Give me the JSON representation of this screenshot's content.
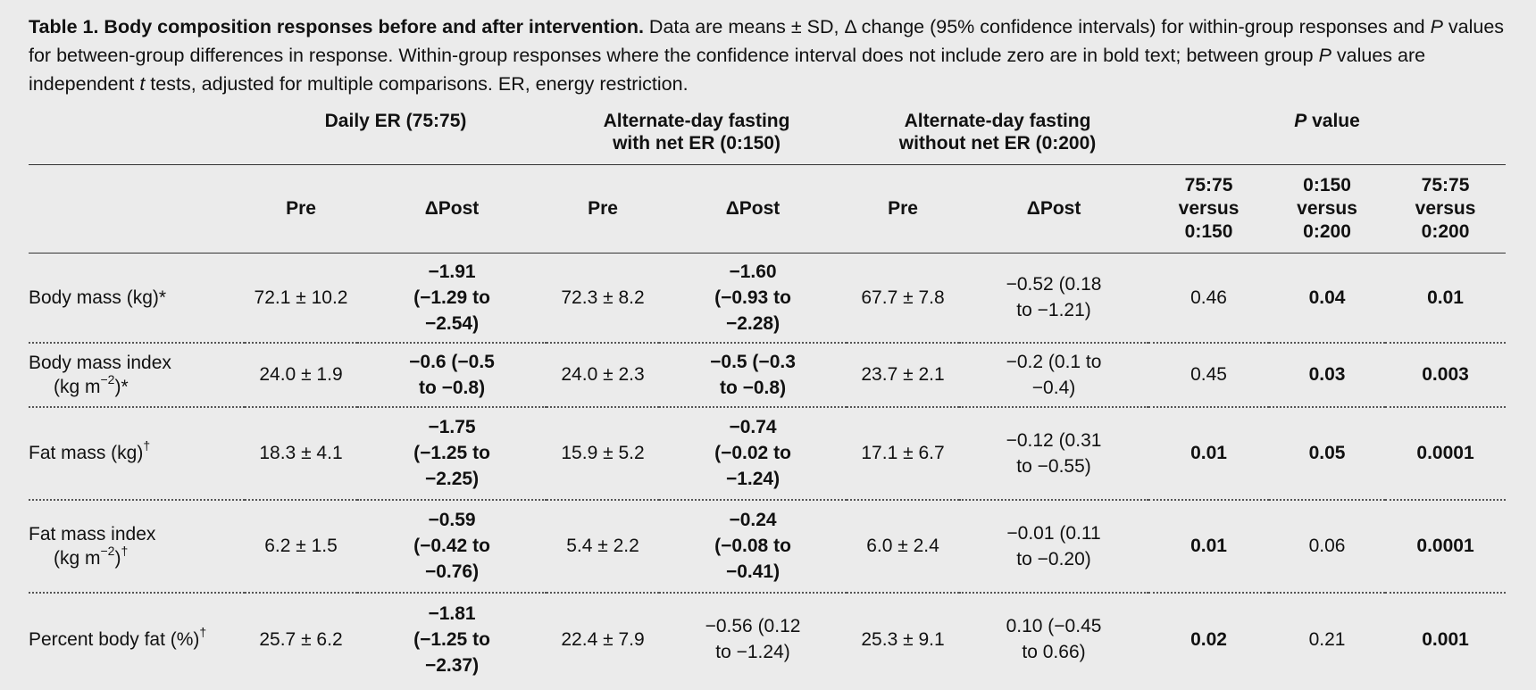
{
  "caption": {
    "title": "Table 1. Body composition responses before and after intervention.",
    "text_1": " Data are means ± SD, Δ change (95% confidence intervals) for within-group responses and ",
    "p": "P",
    "text_2": " values for between-group differences in response. Within-group responses where the confidence interval does not include zero are in bold text; between group ",
    "text_3": " values are independent ",
    "t": "t",
    "text_4": " tests, adjusted for multiple comparisons. ER, energy restriction."
  },
  "groups": {
    "g1": "Daily ER (75:75)",
    "g2_line1": "Alternate-day fasting",
    "g2_line2": "with net ER (0:150)",
    "g3_line1": "Alternate-day fasting",
    "g3_line2": "without net ER (0:200)",
    "pval_p": "P",
    "pval_rest": " value"
  },
  "subheaders": {
    "pre": "Pre",
    "dpost": "ΔPost",
    "c1": [
      "75:75",
      "versus",
      "0:150"
    ],
    "c2": [
      "0:150",
      "versus",
      "0:200"
    ],
    "c3": [
      "75:75",
      "versus",
      "0:200"
    ]
  },
  "rows": [
    {
      "label": "Body mass (kg)*",
      "pre1": "72.1 ± 10.2",
      "post1": [
        "−1.91",
        "(−1.29 to",
        "−2.54)"
      ],
      "pre2": "72.3 ± 8.2",
      "post2": [
        "−1.60",
        "(−0.93 to",
        "−2.28)"
      ],
      "pre3": "67.7 ± 7.8",
      "post3": [
        "−0.52 (0.18",
        "to −1.21)"
      ],
      "p1": "0.46",
      "p2": "0.04",
      "p3": "0.01"
    },
    {
      "label_1": "Body mass index",
      "label_2a": "(kg m",
      "label_sup": "−2",
      "label_2b": ")*",
      "pre1": "24.0 ± 1.9",
      "post1": [
        "−0.6 (−0.5",
        "to −0.8)"
      ],
      "pre2": "24.0 ± 2.3",
      "post2": [
        "−0.5 (−0.3",
        "to −0.8)"
      ],
      "pre3": "23.7 ± 2.1",
      "post3": [
        "−0.2 (0.1 to",
        "−0.4)"
      ],
      "p1": "0.45",
      "p2": "0.03",
      "p3": "0.003"
    },
    {
      "label": "Fat mass (kg)",
      "label_sup": "†",
      "pre1": "18.3 ± 4.1",
      "post1": [
        "−1.75",
        "(−1.25 to",
        "−2.25)"
      ],
      "pre2": "15.9 ± 5.2",
      "post2": [
        "−0.74",
        "(−0.02 to",
        "−1.24)"
      ],
      "pre3": "17.1 ± 6.7",
      "post3": [
        "−0.12 (0.31",
        "to −0.55)"
      ],
      "p1": "0.01",
      "p2": "0.05",
      "p3": "0.0001"
    },
    {
      "label_1": "Fat mass index",
      "label_2a": "(kg m",
      "label_sup": "−2",
      "label_2b": ")",
      "label_sup2": "†",
      "pre1": "6.2 ± 1.5",
      "post1": [
        "−0.59",
        "(−0.42 to",
        "−0.76)"
      ],
      "pre2": "5.4 ± 2.2",
      "post2": [
        "−0.24",
        "(−0.08 to",
        "−0.41)"
      ],
      "pre3": "6.0 ± 2.4",
      "post3": [
        "−0.01 (0.11",
        "to −0.20)"
      ],
      "p1": "0.01",
      "p2": "0.06",
      "p3": "0.0001"
    },
    {
      "label": "Percent body fat (%)",
      "label_sup": "†",
      "pre1": "25.7 ± 6.2",
      "post1": [
        "−1.81",
        "(−1.25 to",
        "−2.37)"
      ],
      "pre2": "22.4 ± 7.9",
      "post2": [
        "−0.56 (0.12",
        "to −1.24)"
      ],
      "pre3": "25.3 ± 9.1",
      "post3": [
        "0.10 (−0.45",
        "to 0.66)"
      ],
      "p1": "0.02",
      "p2": "0.21",
      "p3": "0.001"
    }
  ]
}
